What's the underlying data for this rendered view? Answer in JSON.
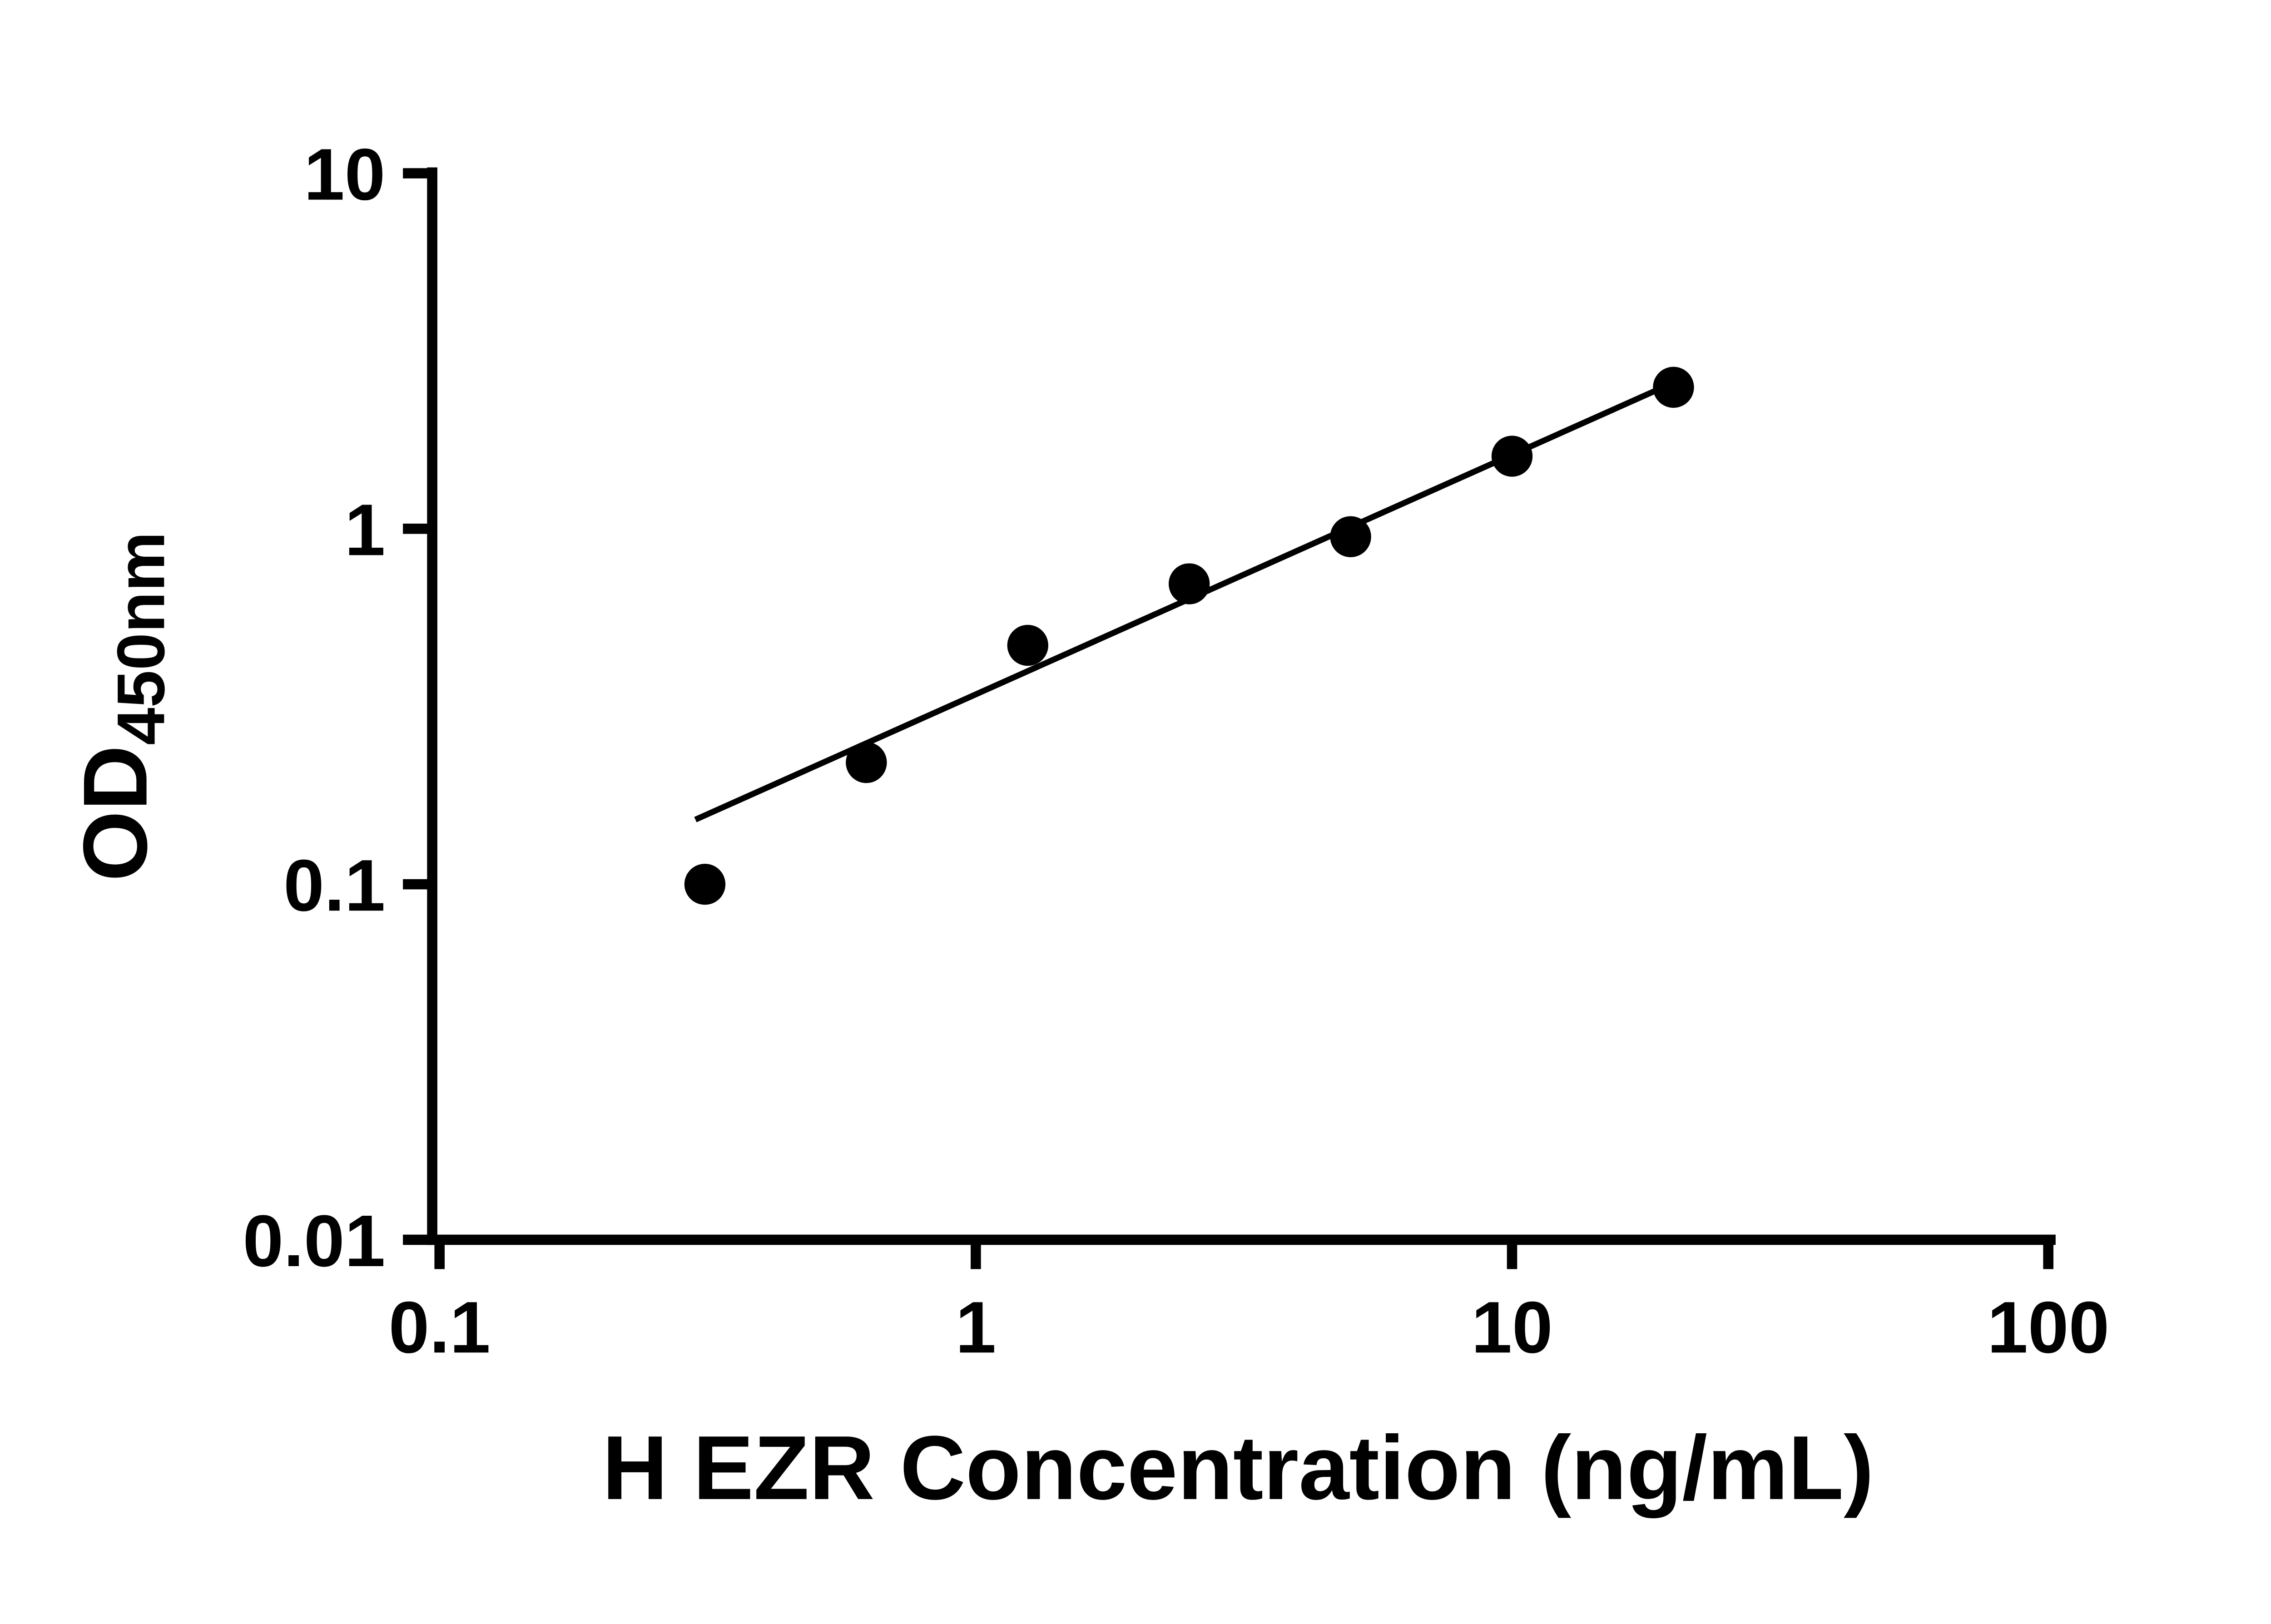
{
  "chart_data": {
    "type": "scatter",
    "title": "",
    "xlabel": "H EZR Concentration (ng/mL)",
    "ylabel": "OD",
    "ylabel_sub": "450nm",
    "x": [
      0.3125,
      0.625,
      1.25,
      2.5,
      5,
      10,
      20
    ],
    "y": [
      0.1,
      0.22,
      0.47,
      0.7,
      0.95,
      1.6,
      2.5
    ],
    "xscale": "log",
    "yscale": "log",
    "xlim": [
      0.1,
      100
    ],
    "ylim": [
      0.01,
      10
    ],
    "x_ticks": [
      0.1,
      1,
      10,
      100
    ],
    "x_tick_labels": [
      "0.1",
      "1",
      "10",
      "100"
    ],
    "y_ticks": [
      0.01,
      0.1,
      1,
      10
    ],
    "y_tick_labels": [
      "0.01",
      "0.1",
      "1",
      "10"
    ],
    "trendline": {
      "x_start": 0.3,
      "y_start": 0.152,
      "x_end": 20.5,
      "y_end": 2.62
    },
    "marker_color": "#000000",
    "line_color": "#000000",
    "axis_color": "#000000",
    "background_color": "#ffffff",
    "grid": false,
    "legend": null
  }
}
